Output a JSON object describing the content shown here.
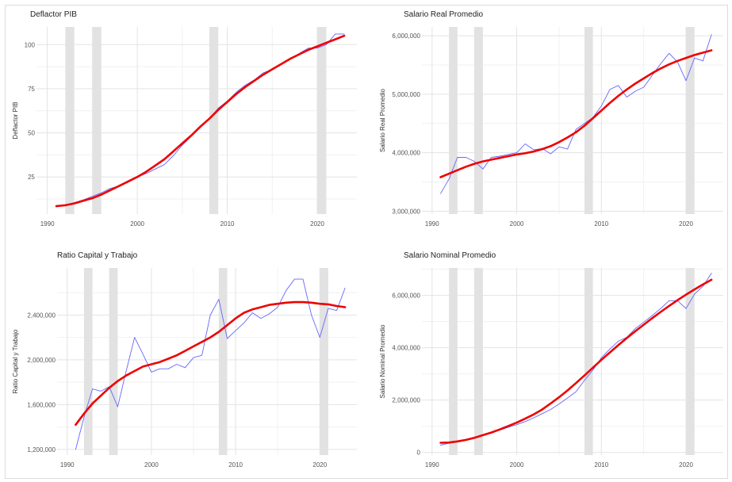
{
  "chart_data": [
    {
      "type": "line",
      "title": "Deflactor PIB",
      "xlabel": "",
      "ylabel": "Deflactor PIB",
      "xlim": [
        1988.8,
        2024.4
      ],
      "ylim": [
        4,
        110
      ],
      "x_ticks": [
        1990,
        2000,
        2010,
        2020
      ],
      "y_ticks": [
        25,
        50,
        75,
        100
      ],
      "y_tick_labels": [
        "25",
        "50",
        "75",
        "100"
      ],
      "grid": true,
      "shaded_periods": [
        [
          1992,
          1993
        ],
        [
          1995,
          1996
        ],
        [
          2008,
          2009
        ],
        [
          2020,
          2021
        ]
      ],
      "series": [
        {
          "color": "#6666ff",
          "x": [
            1991,
            1992,
            1993,
            1994,
            1995,
            1996,
            1997,
            1998,
            1999,
            2000,
            2001,
            2002,
            2003,
            2004,
            2005,
            2006,
            2007,
            2008,
            2009,
            2010,
            2011,
            2012,
            2013,
            2014,
            2015,
            2016,
            2017,
            2018,
            2019,
            2020,
            2021,
            2022,
            2023
          ],
          "values": [
            8,
            9,
            10.5,
            12,
            14,
            16,
            18.5,
            20,
            22,
            25,
            27,
            29.5,
            32,
            37,
            43,
            48,
            53,
            58,
            64,
            68,
            73,
            77,
            80,
            84,
            86,
            89,
            92,
            95,
            98,
            98,
            100,
            106,
            106
          ]
        },
        {
          "color": "#ee0000",
          "x": [
            1991,
            1992,
            1993,
            1994,
            1995,
            1996,
            1997,
            1998,
            1999,
            2000,
            2001,
            2002,
            2003,
            2004,
            2005,
            2006,
            2007,
            2008,
            2009,
            2010,
            2011,
            2012,
            2013,
            2014,
            2015,
            2016,
            2017,
            2018,
            2019,
            2020,
            2021,
            2022,
            2023
          ],
          "values": [
            8.5,
            9,
            10,
            11.5,
            13,
            15,
            17.5,
            20,
            22.5,
            25,
            28,
            31.5,
            35,
            39.5,
            44,
            48.5,
            53.5,
            58,
            63,
            67.5,
            72,
            76,
            79.5,
            83,
            86,
            89,
            92,
            94.5,
            97,
            99,
            101,
            103,
            105
          ]
        }
      ]
    },
    {
      "type": "line",
      "title": "Salario Real Promedio",
      "xlabel": "",
      "ylabel": "Salario Real Promedio",
      "xlim": [
        1988.8,
        2024.4
      ],
      "ylim": [
        2950000,
        6150000
      ],
      "x_ticks": [
        1990,
        2000,
        2010,
        2020
      ],
      "y_ticks": [
        3000000,
        4000000,
        5000000,
        6000000
      ],
      "y_tick_labels": [
        "3,000,000",
        "4,000,000",
        "5,000,000",
        "6,000,000"
      ],
      "grid": true,
      "shaded_periods": [
        [
          1992,
          1993
        ],
        [
          1995,
          1996
        ],
        [
          2008,
          2009
        ],
        [
          2020,
          2021
        ]
      ],
      "series": [
        {
          "color": "#6666ff",
          "x": [
            1991,
            1992,
            1993,
            1994,
            1995,
            1996,
            1997,
            1998,
            1999,
            2000,
            2001,
            2002,
            2003,
            2004,
            2005,
            2006,
            2007,
            2008,
            2009,
            2010,
            2011,
            2012,
            2013,
            2014,
            2015,
            2016,
            2017,
            2018,
            2019,
            2020,
            2021,
            2022,
            2023
          ],
          "values": [
            3300000,
            3550000,
            3920000,
            3920000,
            3850000,
            3720000,
            3920000,
            3940000,
            3970000,
            4000000,
            4150000,
            4050000,
            4070000,
            3980000,
            4100000,
            4060000,
            4400000,
            4500000,
            4600000,
            4800000,
            5080000,
            5150000,
            4950000,
            5050000,
            5120000,
            5320000,
            5520000,
            5700000,
            5550000,
            5230000,
            5620000,
            5570000,
            6020000
          ]
        },
        {
          "color": "#ee0000",
          "x": [
            1991,
            1992,
            1993,
            1994,
            1995,
            1996,
            1997,
            1998,
            1999,
            2000,
            2001,
            2002,
            2003,
            2004,
            2005,
            2006,
            2007,
            2008,
            2009,
            2010,
            2011,
            2012,
            2013,
            2014,
            2015,
            2016,
            2017,
            2018,
            2019,
            2020,
            2021,
            2022,
            2023
          ],
          "values": [
            3580000,
            3640000,
            3700000,
            3760000,
            3810000,
            3850000,
            3880000,
            3910000,
            3940000,
            3970000,
            3990000,
            4020000,
            4060000,
            4110000,
            4180000,
            4260000,
            4350000,
            4460000,
            4590000,
            4720000,
            4850000,
            4970000,
            5080000,
            5180000,
            5270000,
            5360000,
            5440000,
            5510000,
            5570000,
            5620000,
            5670000,
            5710000,
            5750000
          ]
        }
      ]
    },
    {
      "type": "line",
      "title": "Ratio Capital y Trabajo",
      "xlabel": "",
      "ylabel": "Ratio Capital y Trabajo",
      "xlim": [
        1988.8,
        2024.4
      ],
      "ylim": [
        1150000,
        2820000
      ],
      "x_ticks": [
        1990,
        2000,
        2010,
        2020
      ],
      "y_ticks": [
        1200000,
        1600000,
        2000000,
        2400000
      ],
      "y_tick_labels": [
        "1,200,000",
        "1,600,000",
        "2,000,000",
        "2,400,000"
      ],
      "grid": true,
      "shaded_periods": [
        [
          1992,
          1993
        ],
        [
          1995,
          1996
        ],
        [
          2008,
          2009
        ],
        [
          2020,
          2021
        ]
      ],
      "series": [
        {
          "color": "#6666ff",
          "x": [
            1991,
            1992,
            1993,
            1994,
            1995,
            1996,
            1997,
            1998,
            1999,
            2000,
            2001,
            2002,
            2003,
            2004,
            2005,
            2006,
            2007,
            2008,
            2009,
            2010,
            2011,
            2012,
            2013,
            2014,
            2015,
            2016,
            2017,
            2018,
            2019,
            2020,
            2021,
            2022,
            2023
          ],
          "values": [
            1200000,
            1490000,
            1740000,
            1720000,
            1760000,
            1580000,
            1900000,
            2200000,
            2050000,
            1890000,
            1920000,
            1920000,
            1960000,
            1930000,
            2020000,
            2040000,
            2400000,
            2540000,
            2190000,
            2260000,
            2330000,
            2420000,
            2370000,
            2410000,
            2470000,
            2620000,
            2720000,
            2720000,
            2400000,
            2200000,
            2460000,
            2440000,
            2640000
          ]
        },
        {
          "color": "#ee0000",
          "x": [
            1991,
            1992,
            1993,
            1994,
            1995,
            1996,
            1997,
            1998,
            1999,
            2000,
            2001,
            2002,
            2003,
            2004,
            2005,
            2006,
            2007,
            2008,
            2009,
            2010,
            2011,
            2012,
            2013,
            2014,
            2015,
            2016,
            2017,
            2018,
            2019,
            2020,
            2021,
            2022,
            2023
          ],
          "values": [
            1420000,
            1520000,
            1610000,
            1680000,
            1750000,
            1810000,
            1860000,
            1900000,
            1940000,
            1960000,
            1980000,
            2010000,
            2040000,
            2080000,
            2120000,
            2160000,
            2200000,
            2250000,
            2310000,
            2370000,
            2420000,
            2450000,
            2470000,
            2490000,
            2500000,
            2510000,
            2515000,
            2515000,
            2510000,
            2500000,
            2495000,
            2480000,
            2470000
          ]
        }
      ]
    },
    {
      "type": "line",
      "title": "Salario Nominal Promedio",
      "xlabel": "",
      "ylabel": "Salario Nominal Promedio",
      "xlim": [
        1988.8,
        2024.4
      ],
      "ylim": [
        -100000,
        7050000
      ],
      "x_ticks": [
        1990,
        2000,
        2010,
        2020
      ],
      "y_ticks": [
        0,
        2000000,
        4000000,
        6000000
      ],
      "y_tick_labels": [
        "0",
        "2,000,000",
        "4,000,000",
        "6,000,000"
      ],
      "grid": true,
      "shaded_periods": [
        [
          1992,
          1993
        ],
        [
          1995,
          1996
        ],
        [
          2008,
          2009
        ],
        [
          2020,
          2021
        ]
      ],
      "series": [
        {
          "color": "#6666ff",
          "x": [
            1991,
            1992,
            1993,
            1994,
            1995,
            1996,
            1997,
            1998,
            1999,
            2000,
            2001,
            2002,
            2003,
            2004,
            2005,
            2006,
            2007,
            2008,
            2009,
            2010,
            2011,
            2012,
            2013,
            2014,
            2015,
            2016,
            2017,
            2018,
            2019,
            2020,
            2021,
            2022,
            2023
          ],
          "values": [
            280000,
            350000,
            400000,
            470000,
            560000,
            650000,
            760000,
            850000,
            960000,
            1060000,
            1180000,
            1320000,
            1480000,
            1640000,
            1850000,
            2080000,
            2320000,
            2750000,
            3150000,
            3620000,
            3950000,
            4250000,
            4400000,
            4730000,
            4980000,
            5230000,
            5500000,
            5800000,
            5800000,
            5500000,
            6050000,
            6350000,
            6850000
          ]
        },
        {
          "color": "#ee0000",
          "x": [
            1991,
            1992,
            1993,
            1994,
            1995,
            1996,
            1997,
            1998,
            1999,
            2000,
            2001,
            2002,
            2003,
            2004,
            2005,
            2006,
            2007,
            2008,
            2009,
            2010,
            2011,
            2012,
            2013,
            2014,
            2015,
            2016,
            2017,
            2018,
            2019,
            2020,
            2021,
            2022,
            2023
          ],
          "values": [
            370000,
            380000,
            420000,
            480000,
            560000,
            660000,
            760000,
            880000,
            1010000,
            1140000,
            1290000,
            1450000,
            1640000,
            1870000,
            2110000,
            2370000,
            2650000,
            2940000,
            3240000,
            3540000,
            3820000,
            4100000,
            4370000,
            4630000,
            4880000,
            5130000,
            5370000,
            5600000,
            5820000,
            6030000,
            6230000,
            6420000,
            6600000
          ]
        }
      ]
    }
  ]
}
